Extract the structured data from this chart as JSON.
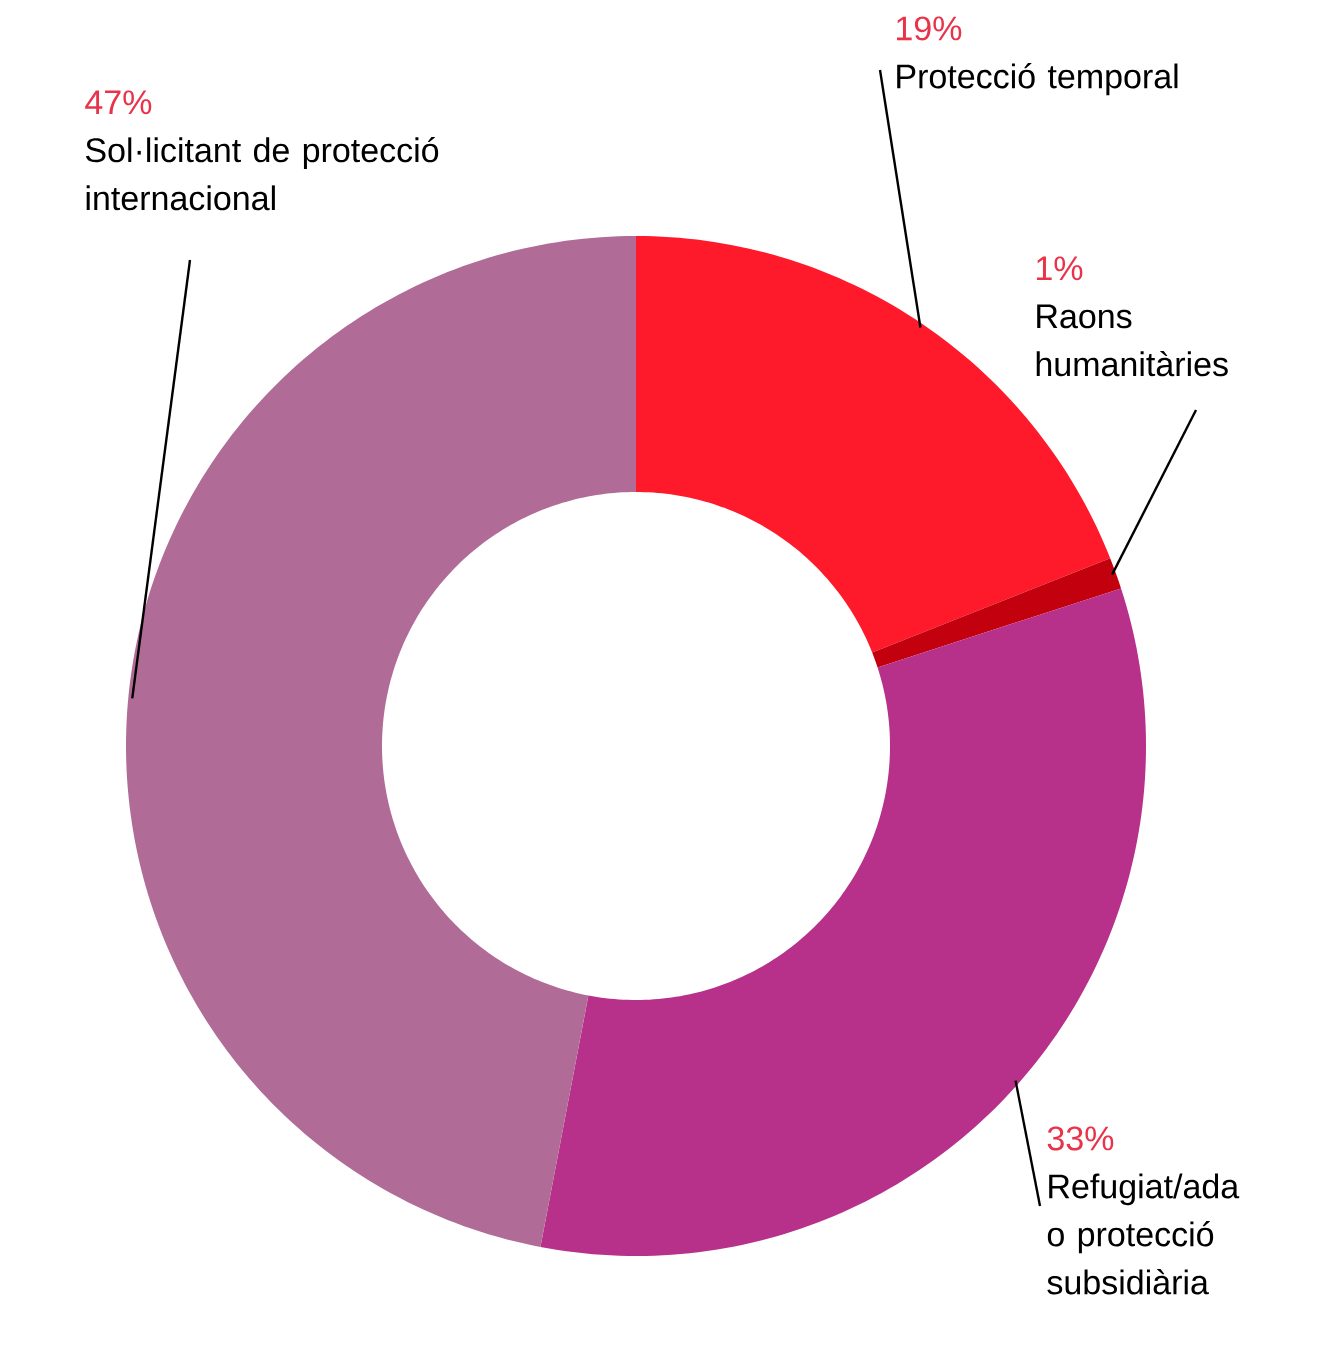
{
  "chart_data": {
    "type": "donut",
    "categories": [
      "Protecció temporal",
      "Raons humanitàries",
      "Refugiat/ada o protecció subsidiària",
      "Sol·licitant de protecció internacional"
    ],
    "values": [
      19,
      1,
      33,
      47
    ],
    "value_labels": [
      "19%",
      "1%",
      "33%",
      "47%"
    ],
    "colors": [
      "#fe1a2a",
      "#c3000e",
      "#b7318b",
      "#b06c97"
    ]
  }
}
